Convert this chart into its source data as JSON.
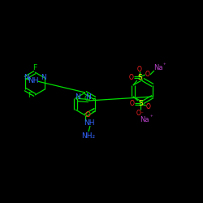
{
  "bg_color": "#000000",
  "bond_color": "#00dd00",
  "text_colors": {
    "F": "#00dd00",
    "N": "#3366ff",
    "Cl": "#00dd00",
    "O": "#ff2222",
    "S": "#ffff00",
    "Na": "#bb44cc",
    "NH": "#3366ff",
    "NH2": "#3366ff",
    "default": "#00dd00"
  },
  "figsize": [
    2.5,
    2.5
  ],
  "dpi": 100
}
